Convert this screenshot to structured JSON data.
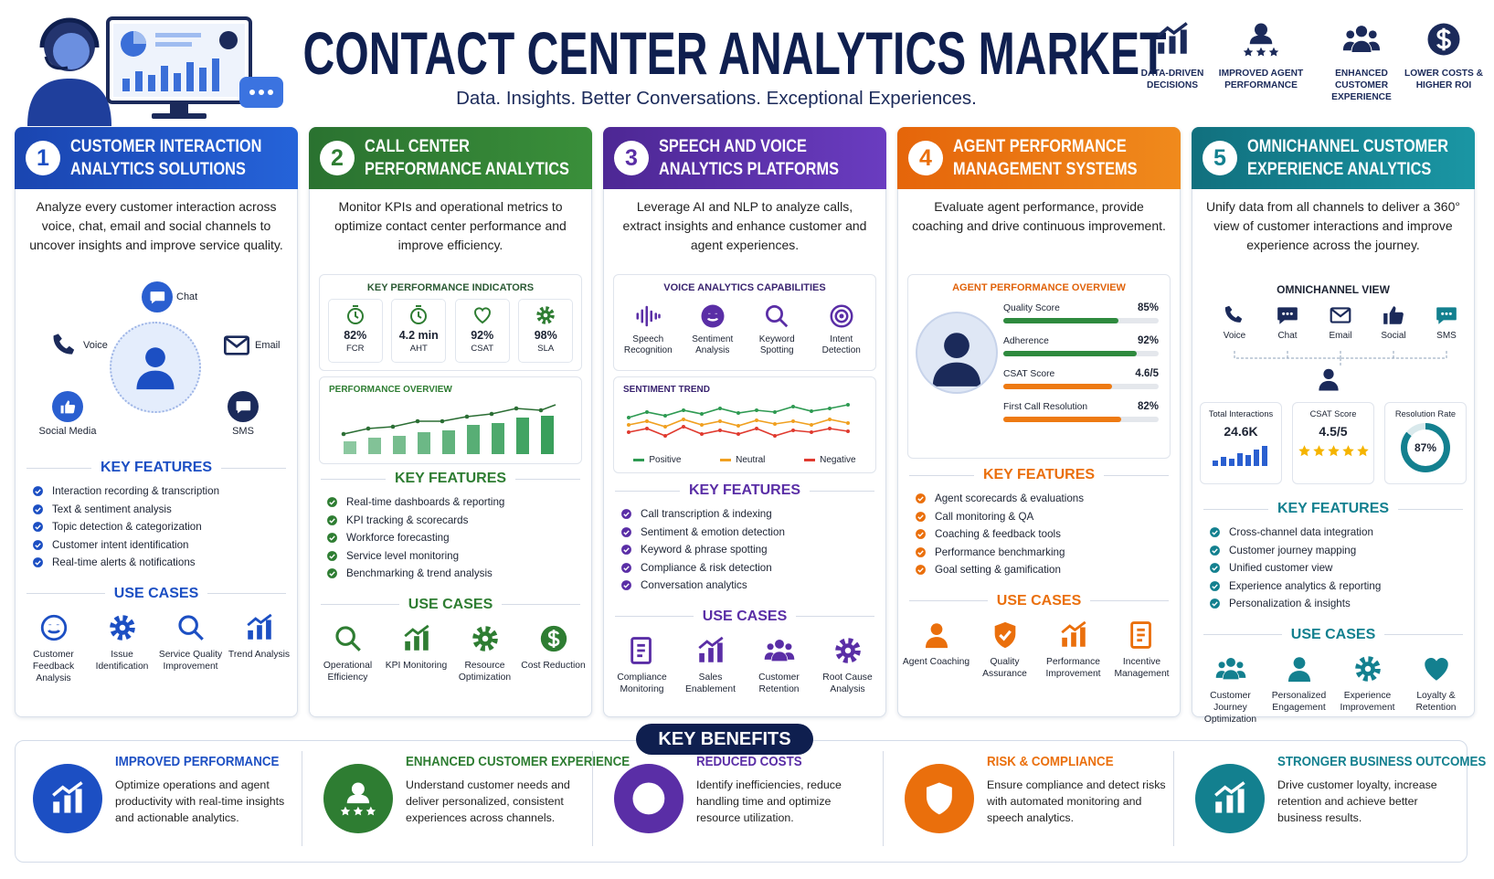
{
  "header": {
    "title": "CONTACT CENTER ANALYTICS MARKET",
    "subtitle": "Data. Insights. Better Conversations. Exceptional Experiences.",
    "badges": [
      "DATA-DRIVEN DECISIONS",
      "IMPROVED AGENT PERFORMANCE",
      "ENHANCED CUSTOMER EXPERIENCE",
      "LOWER COSTS & HIGHER ROI"
    ]
  },
  "columns": [
    {
      "number": "1",
      "title_lines": [
        "CUSTOMER INTERACTION",
        "ANALYTICS SOLUTIONS"
      ],
      "description": "Analyze every customer interaction across voice, chat, email and social channels to uncover insights and improve service quality.",
      "channels": [
        "Chat",
        "Voice",
        "Email",
        "Social Media",
        "SMS"
      ],
      "features_heading": "KEY FEATURES",
      "features": [
        "Interaction recording & transcription",
        "Text & sentiment analysis",
        "Topic detection & categorization",
        "Customer intent identification",
        "Real-time alerts & notifications"
      ],
      "use_cases_heading": "USE CASES",
      "use_cases": [
        "Customer Feedback Analysis",
        "Issue Identification",
        "Service Quality Improvement",
        "Trend Analysis"
      ]
    },
    {
      "number": "2",
      "title_lines": [
        "CALL CENTER",
        "PERFORMANCE ANALYTICS"
      ],
      "description": "Monitor KPIs and operational metrics to optimize contact center performance and improve efficiency.",
      "kpi_title": "KEY PERFORMANCE INDICATORS",
      "kpis": [
        {
          "value": "82%",
          "label": "FCR"
        },
        {
          "value": "4.2 min",
          "label": "AHT"
        },
        {
          "value": "92%",
          "label": "CSAT"
        },
        {
          "value": "98%",
          "label": "SLA"
        }
      ],
      "chart_title": "PERFORMANCE OVERVIEW",
      "features_heading": "KEY FEATURES",
      "features": [
        "Real-time dashboards & reporting",
        "KPI tracking & scorecards",
        "Workforce forecasting",
        "Service level monitoring",
        "Benchmarking & trend analysis"
      ],
      "use_cases_heading": "USE CASES",
      "use_cases": [
        "Operational Efficiency",
        "KPI Monitoring",
        "Resource Optimization",
        "Cost Reduction"
      ]
    },
    {
      "number": "3",
      "title_lines": [
        "SPEECH AND VOICE",
        "ANALYTICS PLATFORMS"
      ],
      "description": "Leverage AI and NLP to analyze calls, extract insights and enhance customer and agent experiences.",
      "capabilities_title": "VOICE ANALYTICS CAPABILITIES",
      "capabilities": [
        "Speech Recognition",
        "Sentiment Analysis",
        "Keyword Spotting",
        "Intent Detection"
      ],
      "trend_title": "SENTIMENT TREND",
      "trend_legend": [
        "Positive",
        "Neutral",
        "Negative"
      ],
      "features_heading": "KEY FEATURES",
      "features": [
        "Call transcription & indexing",
        "Sentiment & emotion detection",
        "Keyword & phrase spotting",
        "Compliance & risk detection",
        "Conversation analytics"
      ],
      "use_cases_heading": "USE CASES",
      "use_cases": [
        "Compliance Monitoring",
        "Sales Enablement",
        "Customer Retention",
        "Root Cause Analysis"
      ]
    },
    {
      "number": "4",
      "title_lines": [
        "AGENT PERFORMANCE",
        "MANAGEMENT SYSTEMS"
      ],
      "description": "Evaluate agent performance, provide coaching and drive continuous improvement.",
      "overview_title": "AGENT PERFORMANCE OVERVIEW",
      "metrics": [
        {
          "label": "Quality Score",
          "value": "85%"
        },
        {
          "label": "Adherence",
          "value": "92%"
        },
        {
          "label": "CSAT Score",
          "value": "4.6/5"
        },
        {
          "label": "First Call Resolution",
          "value": "82%"
        }
      ],
      "features_heading": "KEY FEATURES",
      "features": [
        "Agent scorecards & evaluations",
        "Call monitoring & QA",
        "Coaching & feedback tools",
        "Performance benchmarking",
        "Goal setting & gamification"
      ],
      "use_cases_heading": "USE CASES",
      "use_cases": [
        "Agent Coaching",
        "Quality Assurance",
        "Performance Improvement",
        "Incentive Management"
      ]
    },
    {
      "number": "5",
      "title_lines": [
        "OMNICHANNEL CUSTOMER",
        "EXPERIENCE ANALYTICS"
      ],
      "description": "Unify data from all channels to deliver a 360° view of customer interactions and improve experience across the journey.",
      "view_title": "OMNICHANNEL VIEW",
      "channels": [
        "Voice",
        "Chat",
        "Email",
        "Social",
        "SMS"
      ],
      "stats": [
        {
          "label": "Total Interactions",
          "value": "24.6K"
        },
        {
          "label": "CSAT Score",
          "value": "4.5/5"
        },
        {
          "label": "Resolution Rate",
          "value": "87%"
        }
      ],
      "features_heading": "KEY FEATURES",
      "features": [
        "Cross-channel data integration",
        "Customer journey mapping",
        "Unified customer view",
        "Experience analytics & reporting",
        "Personalization & insights"
      ],
      "use_cases_heading": "USE CASES",
      "use_cases": [
        "Customer Journey Optimization",
        "Personalized Engagement",
        "Experience Improvement",
        "Loyalty & Retention"
      ]
    }
  ],
  "benefits": {
    "heading": "KEY BENEFITS",
    "items": [
      {
        "title": "IMPROVED PERFORMANCE",
        "text": "Optimize operations and agent productivity with real-time insights and actionable analytics."
      },
      {
        "title": "ENHANCED CUSTOMER EXPERIENCE",
        "text": "Understand customer needs and deliver personalized, consistent experiences across channels."
      },
      {
        "title": "REDUCED COSTS",
        "text": "Identify inefficiencies, reduce handling time and optimize resource utilization."
      },
      {
        "title": "RISK & COMPLIANCE",
        "text": "Ensure compliance and detect risks with automated monitoring and speech analytics."
      },
      {
        "title": "STRONGER BUSINESS OUTCOMES",
        "text": "Drive customer loyalty, increase retention and achieve better business results."
      }
    ]
  }
}
